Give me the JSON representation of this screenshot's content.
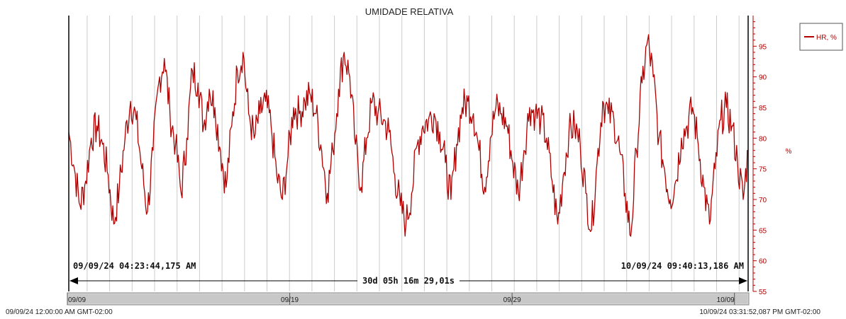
{
  "colors": {
    "series": "#b00000",
    "grid": "#cccccc",
    "text": "#222222",
    "scroll": "#cfcfcf"
  },
  "chart_data": {
    "type": "line",
    "title": "UMIDADE RELATIVA",
    "ylabel": "%",
    "ylim": [
      55,
      100
    ],
    "yticks": [
      55,
      60,
      65,
      70,
      75,
      80,
      85,
      90,
      95
    ],
    "grid": "vertical",
    "legend_position": "top-right",
    "series": [
      {
        "name": "HR, %",
        "start": "2024-09-09T04:23:44",
        "end": "2024-10-09T09:40:13",
        "step_days": 0.25,
        "values": [
          81,
          75,
          69,
          73,
          80,
          82,
          79,
          74,
          66,
          72,
          80,
          86,
          83,
          75,
          68,
          78,
          89,
          93,
          84,
          79,
          71,
          80,
          91,
          89,
          82,
          88,
          85,
          78,
          72,
          82,
          91,
          94,
          84,
          80,
          84,
          86,
          82,
          74,
          70,
          77,
          85,
          84,
          86,
          87,
          84,
          78,
          71,
          78,
          88,
          94,
          90,
          79,
          72,
          80,
          86,
          84,
          83,
          81,
          74,
          69,
          66,
          71,
          79,
          82,
          83,
          84,
          81,
          76,
          70,
          79,
          85,
          86,
          84,
          78,
          72,
          80,
          85,
          84,
          82,
          76,
          71,
          78,
          85,
          84,
          83,
          80,
          73,
          66,
          74,
          81,
          82,
          79,
          71,
          65,
          76,
          86,
          84,
          83,
          78,
          71,
          64,
          78,
          89,
          96,
          90,
          80,
          75,
          70,
          73,
          80,
          82,
          85,
          79,
          72,
          66,
          75,
          83,
          85,
          82,
          76,
          70,
          78,
          82,
          83,
          80,
          79,
          73,
          68,
          75,
          82,
          81,
          79,
          77,
          69,
          74,
          80,
          82,
          79,
          78,
          72,
          67,
          74,
          82,
          86,
          85,
          82,
          76,
          71,
          78,
          85,
          86,
          83,
          82,
          74,
          68,
          76,
          83,
          86,
          84,
          82,
          75,
          70,
          78,
          86,
          88,
          84,
          80,
          73,
          64,
          76,
          85,
          82,
          78,
          74,
          67,
          74,
          81,
          84,
          82,
          80,
          72,
          64,
          77,
          87,
          95,
          88,
          82,
          75,
          72,
          80,
          88,
          86,
          84,
          80,
          73,
          68,
          75,
          82,
          86,
          83,
          80,
          74,
          69,
          77,
          83,
          86,
          85,
          81,
          74,
          67,
          73,
          81,
          84,
          82,
          79,
          73,
          66,
          74,
          82,
          87,
          84,
          80,
          74,
          68,
          75,
          82,
          84,
          83,
          82,
          75,
          70,
          78,
          85,
          84,
          81,
          75,
          70
        ]
      }
    ],
    "start_label": "09/09/24 04:23:44,175 AM",
    "end_label": "10/09/24 09:40:13,186 AM",
    "duration_label": "30d 05h 16m 29,01s",
    "x_tick_labels": [
      "09/09",
      "09/19",
      "09/29",
      "10/09"
    ],
    "range_start_label": "09/09/24 12:00:00 AM GMT-02:00",
    "range_end_label": "10/09/24 03:31:52,087 PM GMT-02:00"
  }
}
